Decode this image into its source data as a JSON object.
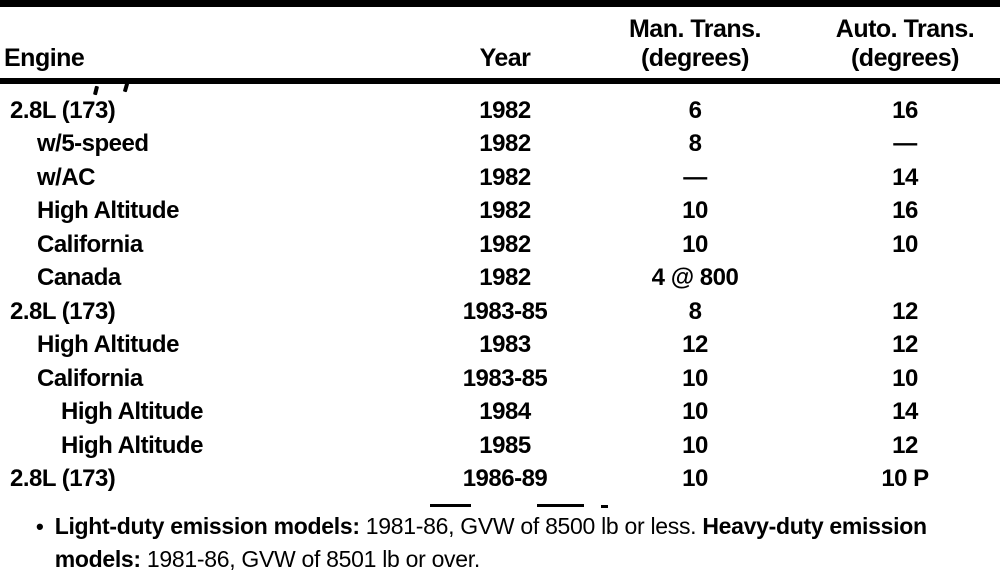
{
  "table": {
    "columns": [
      {
        "label": "Engine",
        "sublabel": ""
      },
      {
        "label": "Year",
        "sublabel": ""
      },
      {
        "label": "Man. Trans.",
        "sublabel": "(degrees)"
      },
      {
        "label": "Auto. Trans.",
        "sublabel": "(degrees)"
      }
    ],
    "rows": [
      {
        "engine": "2.8L (173)",
        "indent": 0,
        "year": "1982",
        "man": "6",
        "auto": "16"
      },
      {
        "engine": "w/5-speed",
        "indent": 1,
        "year": "1982",
        "man": "8",
        "auto": "—"
      },
      {
        "engine": "w/AC",
        "indent": 1,
        "year": "1982",
        "man": "—",
        "auto": "14"
      },
      {
        "engine": "High Altitude",
        "indent": 1,
        "year": "1982",
        "man": "10",
        "auto": "16"
      },
      {
        "engine": "California",
        "indent": 1,
        "year": "1982",
        "man": "10",
        "auto": "10"
      },
      {
        "engine": "Canada",
        "indent": 1,
        "year": "1982",
        "man": "4 @ 800",
        "auto": ""
      },
      {
        "engine": "2.8L (173)",
        "indent": 0,
        "year": "1983-85",
        "man": "8",
        "auto": "12"
      },
      {
        "engine": "High Altitude",
        "indent": 1,
        "year": "1983",
        "man": "12",
        "auto": "12"
      },
      {
        "engine": "California",
        "indent": 1,
        "year": "1983-85",
        "man": "10",
        "auto": "10"
      },
      {
        "engine": "High Altitude",
        "indent": 2,
        "year": "1984",
        "man": "10",
        "auto": "14"
      },
      {
        "engine": "High Altitude",
        "indent": 2,
        "year": "1985",
        "man": "10",
        "auto": "12"
      },
      {
        "engine": "2.8L (173)",
        "indent": 0,
        "year": "1986-89",
        "man": "10",
        "auto": "10 P"
      }
    ]
  },
  "footnote": {
    "bullet": "•",
    "lines": [
      {
        "segments": [
          {
            "text": "Light-duty emission models:",
            "bold": true
          },
          {
            "text": " 1981-86, GVW of 8500 lb or less. ",
            "bold": false
          },
          {
            "text": "Heavy-duty emission",
            "bold": true
          }
        ]
      },
      {
        "segments": [
          {
            "text": "models:",
            "bold": true
          },
          {
            "text": " 1981-86, GVW of 8501 lb or over.",
            "bold": false
          }
        ]
      }
    ]
  },
  "colors": {
    "ink": "#000000",
    "paper": "#ffffff"
  }
}
